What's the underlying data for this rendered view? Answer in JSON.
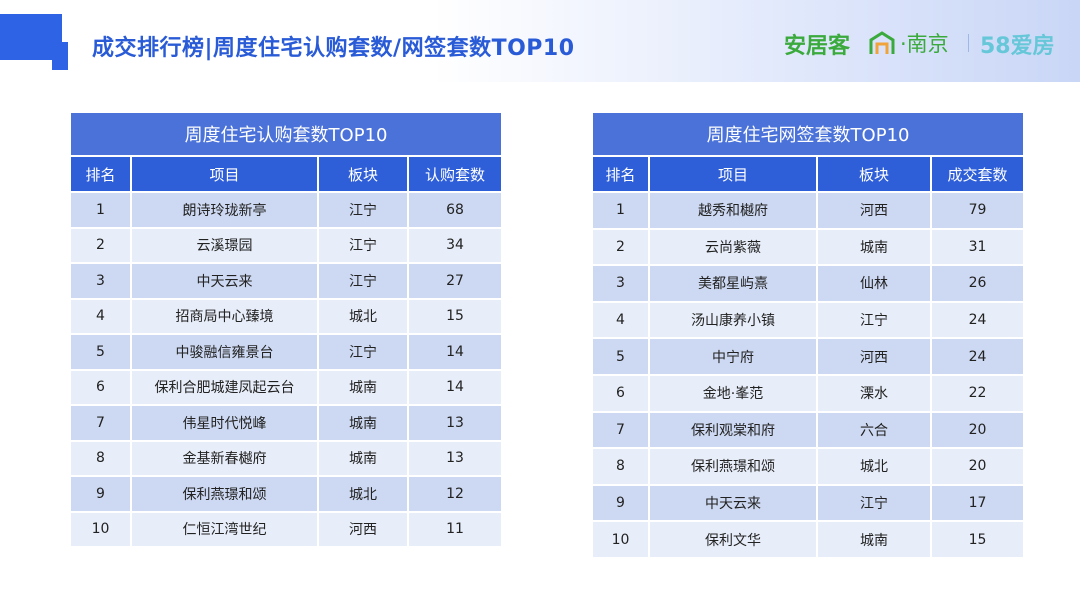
{
  "header": {
    "title": "成交排行榜|周度住宅认购套数/网签套数TOP10",
    "brand_anjuke": "安居客",
    "brand_city": "·南京",
    "brand_58": "58爱房",
    "accent_color": "#2f63e6"
  },
  "left_table": {
    "title": "周度住宅认购套数TOP10",
    "columns": [
      "排名",
      "项目",
      "板块",
      "认购套数"
    ],
    "rows": [
      [
        "1",
        "朗诗玲珑新亭",
        "江宁",
        "68"
      ],
      [
        "2",
        "云溪璟园",
        "江宁",
        "34"
      ],
      [
        "3",
        "中天云来",
        "江宁",
        "27"
      ],
      [
        "4",
        "招商局中心臻境",
        "城北",
        "15"
      ],
      [
        "5",
        "中骏融信雍景台",
        "江宁",
        "14"
      ],
      [
        "6",
        "保利合肥城建凤起云台",
        "城南",
        "14"
      ],
      [
        "7",
        "伟星时代悦峰",
        "城南",
        "13"
      ],
      [
        "8",
        "金基新春樾府",
        "城南",
        "13"
      ],
      [
        "9",
        "保利燕璟和颂",
        "城北",
        "12"
      ],
      [
        "10",
        "仁恒江湾世纪",
        "河西",
        "11"
      ]
    ]
  },
  "right_table": {
    "title": "周度住宅网签套数TOP10",
    "columns": [
      "排名",
      "项目",
      "板块",
      "成交套数"
    ],
    "rows": [
      [
        "1",
        "越秀和樾府",
        "河西",
        "79"
      ],
      [
        "2",
        "云尚紫薇",
        "城南",
        "31"
      ],
      [
        "3",
        "美都星屿熹",
        "仙林",
        "26"
      ],
      [
        "4",
        "汤山康养小镇",
        "江宁",
        "24"
      ],
      [
        "5",
        "中宁府",
        "河西",
        "24"
      ],
      [
        "6",
        "金地·峯范",
        "溧水",
        "22"
      ],
      [
        "7",
        "保利观棠和府",
        "六合",
        "20"
      ],
      [
        "8",
        "保利燕璟和颂",
        "城北",
        "20"
      ],
      [
        "9",
        "中天云来",
        "江宁",
        "17"
      ],
      [
        "10",
        "保利文华",
        "城南",
        "15"
      ]
    ]
  }
}
